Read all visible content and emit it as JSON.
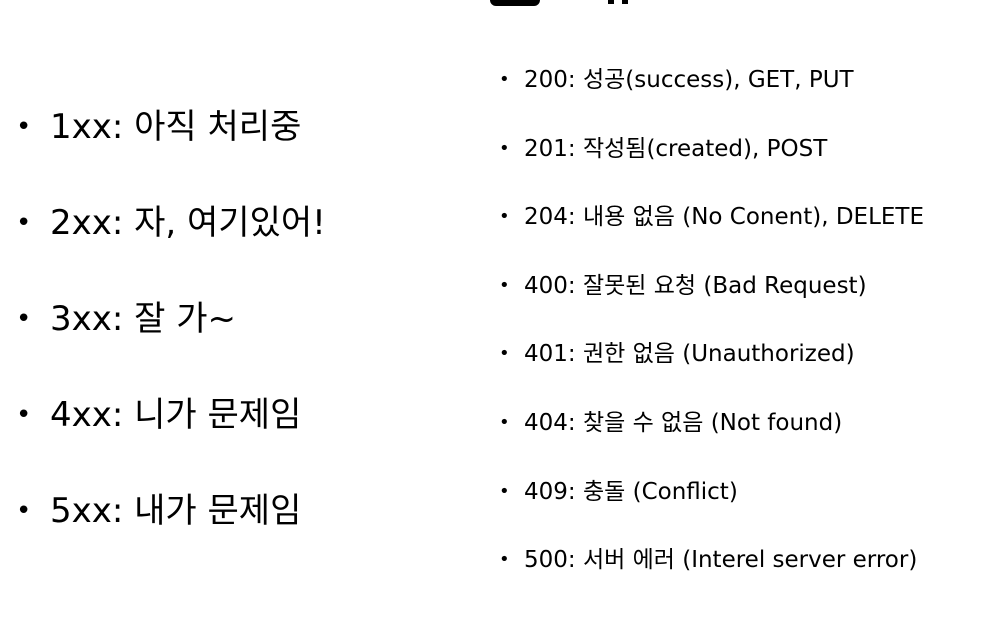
{
  "bullet_glyph": "•",
  "categories": [
    {
      "code": "1xx",
      "text": "1xx: 아직 처리중"
    },
    {
      "code": "2xx",
      "text": "2xx: 자, 여기있어!"
    },
    {
      "code": "3xx",
      "text": "3xx: 잘 가~"
    },
    {
      "code": "4xx",
      "text": "4xx: 니가 문제임"
    },
    {
      "code": "5xx",
      "text": "5xx: 내가 문제임"
    }
  ],
  "status_codes": [
    {
      "code": "200",
      "text": "200: 성공(success), GET, PUT"
    },
    {
      "code": "201",
      "text": "201: 작성됨(created), POST"
    },
    {
      "code": "204",
      "text": "204: 내용 없음 (No Conent), DELETE"
    },
    {
      "code": "400",
      "text": "400: 잘못된 요청 (Bad Request)"
    },
    {
      "code": "401",
      "text": "401: 권한 없음 (Unauthorized)"
    },
    {
      "code": "404",
      "text": "404: 찾을 수 없음 (Not found)"
    },
    {
      "code": "409",
      "text": "409: 충돌 (Conflict)"
    },
    {
      "code": "500",
      "text": "500: 서버 에러 (Interel server error)"
    }
  ]
}
